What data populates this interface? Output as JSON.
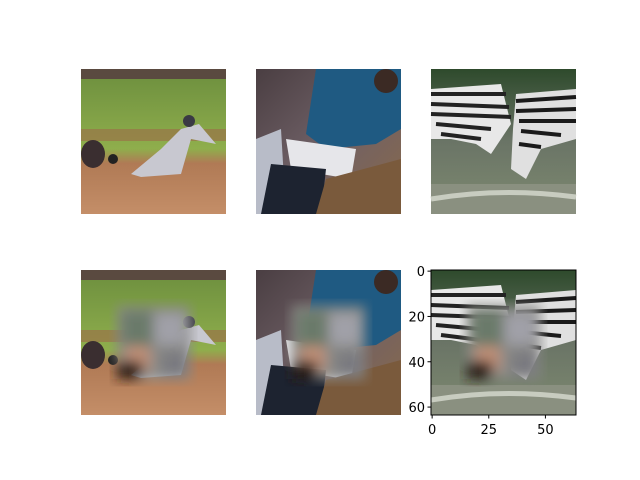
{
  "image_axes": {
    "xlim": [
      -0.5,
      63.5
    ],
    "ylim": [
      63.5,
      -0.5
    ],
    "xticks": [
      0,
      25,
      50
    ],
    "yticks": [
      0,
      20,
      40,
      60
    ]
  }
}
